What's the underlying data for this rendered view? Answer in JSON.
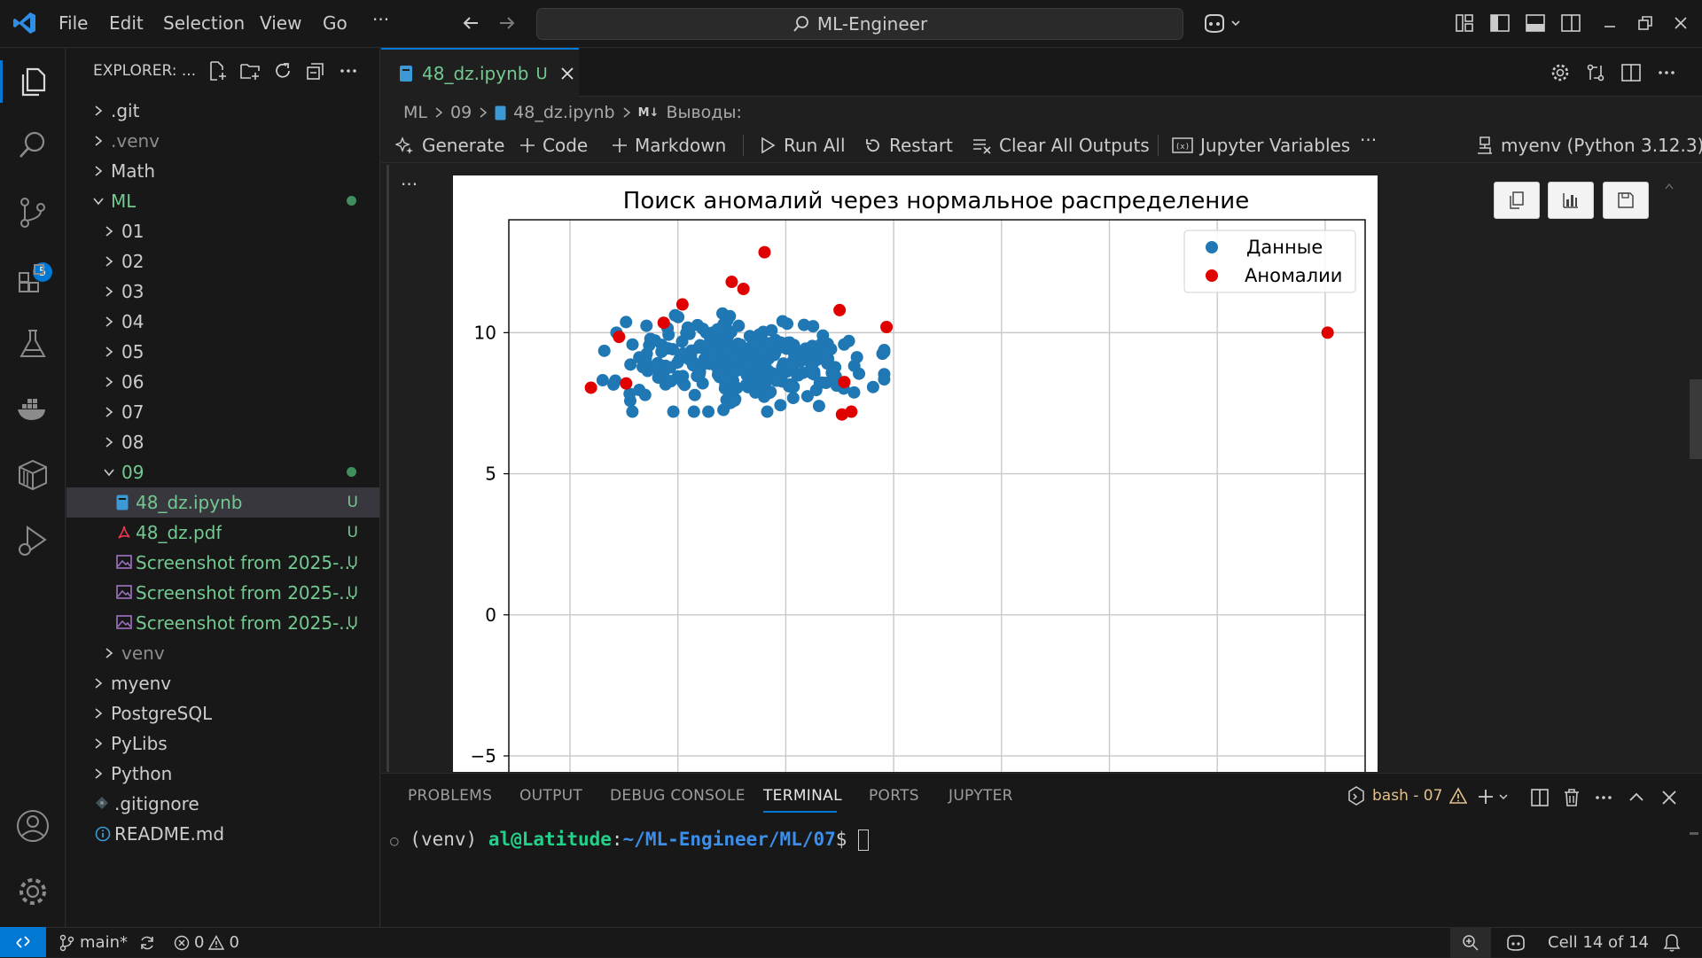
{
  "menu": [
    "File",
    "Edit",
    "Selection",
    "View",
    "Go",
    "···"
  ],
  "search": {
    "text": "ML-Engineer"
  },
  "explorer": {
    "title": "EXPLORER: ...",
    "items": [
      {
        "label": ".git",
        "kind": "folder",
        "expanded": false,
        "depth": 0,
        "color": "#cccccc"
      },
      {
        "label": ".venv",
        "kind": "folder",
        "expanded": false,
        "depth": 0,
        "color": "#8c8c8c"
      },
      {
        "label": "Math",
        "kind": "folder",
        "expanded": false,
        "depth": 0,
        "color": "#cccccc"
      },
      {
        "label": "ML",
        "kind": "folder",
        "expanded": true,
        "depth": 0,
        "color": "#73c991",
        "dot": true
      },
      {
        "label": "01",
        "kind": "folder",
        "expanded": false,
        "depth": 1,
        "color": "#cccccc"
      },
      {
        "label": "02",
        "kind": "folder",
        "expanded": false,
        "depth": 1,
        "color": "#cccccc"
      },
      {
        "label": "03",
        "kind": "folder",
        "expanded": false,
        "depth": 1,
        "color": "#cccccc"
      },
      {
        "label": "04",
        "kind": "folder",
        "expanded": false,
        "depth": 1,
        "color": "#cccccc"
      },
      {
        "label": "05",
        "kind": "folder",
        "expanded": false,
        "depth": 1,
        "color": "#cccccc"
      },
      {
        "label": "06",
        "kind": "folder",
        "expanded": false,
        "depth": 1,
        "color": "#cccccc"
      },
      {
        "label": "07",
        "kind": "folder",
        "expanded": false,
        "depth": 1,
        "color": "#cccccc"
      },
      {
        "label": "08",
        "kind": "folder",
        "expanded": false,
        "depth": 1,
        "color": "#cccccc"
      },
      {
        "label": "09",
        "kind": "folder",
        "expanded": true,
        "depth": 1,
        "color": "#73c991",
        "dot": true
      },
      {
        "label": "48_dz.ipynb",
        "kind": "notebook",
        "depth": 2,
        "color": "#73c991",
        "status": "U",
        "selected": true
      },
      {
        "label": "48_dz.pdf",
        "kind": "pdf",
        "depth": 2,
        "color": "#73c991",
        "status": "U"
      },
      {
        "label": "Screenshot from 2025-...",
        "kind": "image",
        "depth": 2,
        "color": "#73c991",
        "status": "U"
      },
      {
        "label": "Screenshot from 2025-...",
        "kind": "image",
        "depth": 2,
        "color": "#73c991",
        "status": "U"
      },
      {
        "label": "Screenshot from 2025-...",
        "kind": "image",
        "depth": 2,
        "color": "#73c991",
        "status": "U"
      },
      {
        "label": "venv",
        "kind": "folder",
        "expanded": false,
        "depth": 1,
        "color": "#8c8c8c"
      },
      {
        "label": "myenv",
        "kind": "folder",
        "expanded": false,
        "depth": 0,
        "color": "#cccccc"
      },
      {
        "label": "PostgreSQL",
        "kind": "folder",
        "expanded": false,
        "depth": 0,
        "color": "#cccccc"
      },
      {
        "label": "PyLibs",
        "kind": "folder",
        "expanded": false,
        "depth": 0,
        "color": "#cccccc"
      },
      {
        "label": "Python",
        "kind": "folder",
        "expanded": false,
        "depth": 0,
        "color": "#cccccc"
      },
      {
        "label": ".gitignore",
        "kind": "gitignore",
        "depth": 0,
        "color": "#cccccc"
      },
      {
        "label": "README.md",
        "kind": "info",
        "depth": 0,
        "color": "#cccccc"
      }
    ]
  },
  "source_control_badge": "5",
  "tab": {
    "label": "48_dz.ipynb",
    "status": "U"
  },
  "breadcrumb": {
    "parts": [
      "ML",
      "09",
      "48_dz.ipynb"
    ],
    "last_prefix": "M↓",
    "last": "Выводы:"
  },
  "toolbar": {
    "generate": "Generate",
    "code": "Code",
    "markdown": "Markdown",
    "run_all": "Run All",
    "restart": "Restart",
    "clear_outputs": "Clear All Outputs",
    "variables": "Jupyter Variables",
    "more": "···",
    "kernel": "myenv (Python 3.12.3)"
  },
  "cell_more": "···",
  "chart_data": {
    "type": "scatter",
    "title": "Поиск аномалий через нормальное распределение",
    "xlabel": "",
    "ylabel": "",
    "ylim_visible": [
      -6.1,
      14
    ],
    "yticks": [
      10,
      5,
      0,
      -5
    ],
    "ytick_labels": [
      "10",
      "5",
      "0",
      "−5"
    ],
    "x_gridlines": 8,
    "grid": true,
    "legend_position": "top-right",
    "series": [
      {
        "name": "Данные",
        "color": "#1f77b4",
        "cluster": {
          "x_center": 0.0,
          "y_center": 9.0,
          "x_spread": 0.5,
          "y_spread": 0.75,
          "count": 300
        }
      },
      {
        "name": "Аномалии",
        "color": "#e00000",
        "points": [
          [
            0.18,
            12.85
          ],
          [
            -0.1,
            11.8
          ],
          [
            0.0,
            11.55
          ],
          [
            -0.52,
            11.0
          ],
          [
            -0.68,
            10.35
          ],
          [
            0.82,
            10.8
          ],
          [
            1.22,
            10.2
          ],
          [
            -1.06,
            9.85
          ],
          [
            -1.0,
            8.2
          ],
          [
            -1.3,
            8.05
          ],
          [
            0.86,
            8.25
          ],
          [
            0.84,
            7.1
          ],
          [
            0.92,
            7.2
          ],
          [
            4.98,
            10.0
          ]
        ]
      }
    ]
  },
  "panel": {
    "tabs": [
      "PROBLEMS",
      "OUTPUT",
      "DEBUG CONSOLE",
      "TERMINAL",
      "PORTS",
      "JUPYTER"
    ],
    "active": "TERMINAL",
    "shell": "bash - 07",
    "terminal": {
      "marker": "○",
      "env": "(venv)",
      "user_host": "al@Latitude",
      "path": "~/ML-Engineer/ML/07",
      "prompt": "$"
    }
  },
  "status": {
    "branch": "main*",
    "errors": "0",
    "warnings": "0",
    "cell": "Cell 14 of 14"
  }
}
